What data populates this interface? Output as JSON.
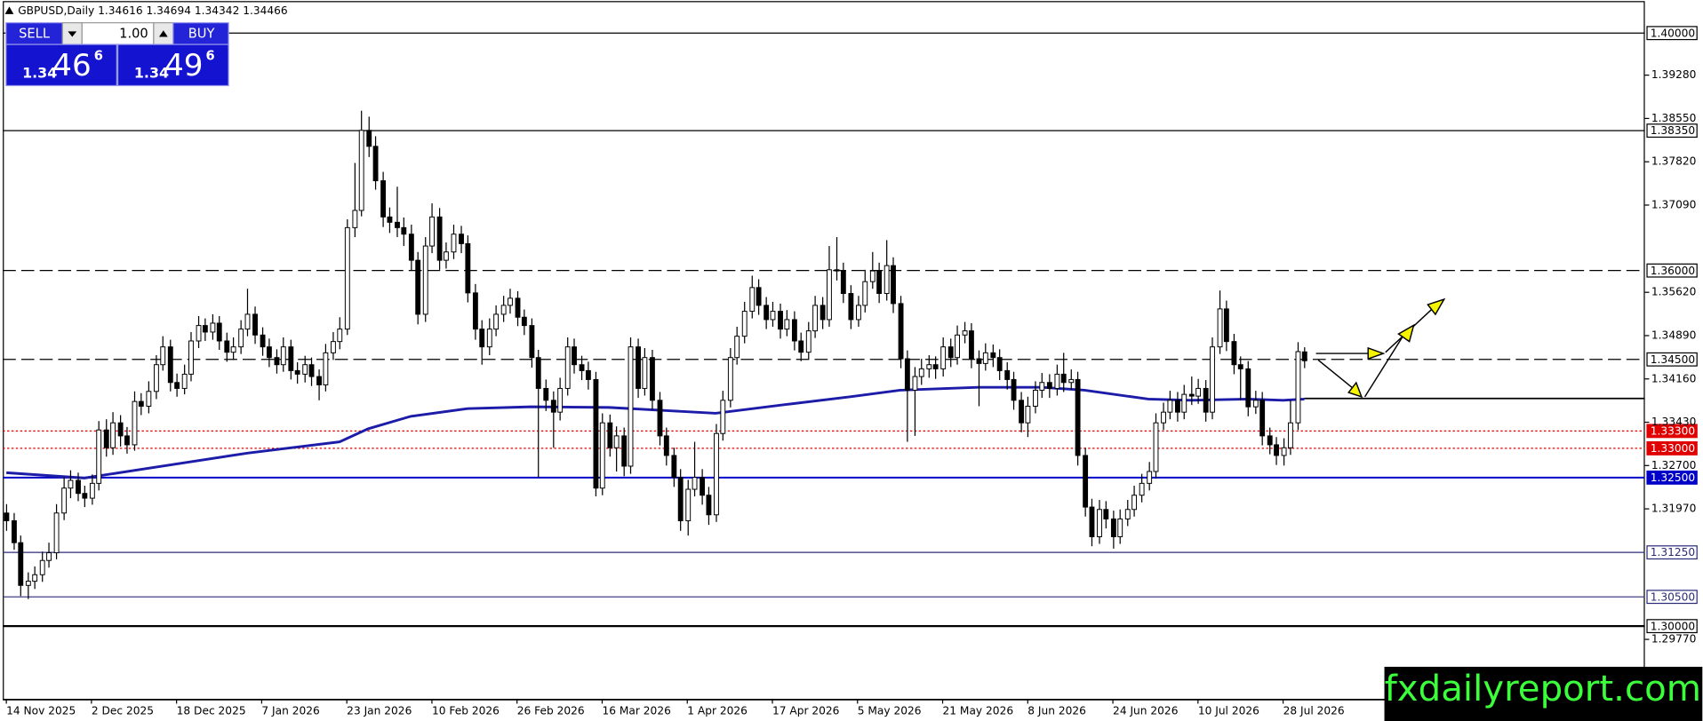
{
  "chart_data": {
    "type": "candlestick",
    "symbol": "GBPUSD,Daily",
    "watermark": "fxdailyreport.com",
    "trade_panel": {
      "sell": "SELL",
      "buy": "BUY",
      "lots": "1.00",
      "sell_big": "1.34",
      "sell_pips": "46",
      "sell_frac": "6",
      "buy_big": "1.34",
      "buy_pips": "49",
      "buy_frac": "6"
    },
    "ylim": [
      1.2876,
      1.4051
    ],
    "xlim": [
      -0.5,
      231
    ],
    "yticks": [
      {
        "value": 1.3928,
        "label": "1.39280"
      },
      {
        "value": 1.3855,
        "label": "1.38550"
      },
      {
        "value": 1.3782,
        "label": "1.37820"
      },
      {
        "value": 1.3709,
        "label": "1.37090"
      },
      {
        "value": 1.3562,
        "label": "1.35620"
      },
      {
        "value": 1.3489,
        "label": "1.34890"
      },
      {
        "value": 1.3416,
        "label": "1.34160"
      },
      {
        "value": 1.3343,
        "label": "1.33430"
      },
      {
        "value": 1.327,
        "label": "1.32700"
      },
      {
        "value": 1.3197,
        "label": "1.31970"
      },
      {
        "value": 1.2977,
        "label": "1.29770"
      }
    ],
    "xticks": [
      {
        "value": 0,
        "label": "14 Nov 2025"
      },
      {
        "value": 12,
        "label": "2 Dec 2025"
      },
      {
        "value": 24,
        "label": "18 Dec 2025"
      },
      {
        "value": 36,
        "label": "7 Jan 2026"
      },
      {
        "value": 48,
        "label": "23 Jan 2026"
      },
      {
        "value": 60,
        "label": "10 Feb 2026"
      },
      {
        "value": 72,
        "label": "26 Feb 2026"
      },
      {
        "value": 84,
        "label": "16 Mar 2026"
      },
      {
        "value": 96,
        "label": "1 Apr 2026"
      },
      {
        "value": 108,
        "label": "17 Apr 2026"
      },
      {
        "value": 120,
        "label": "5 May 2026"
      },
      {
        "value": 132,
        "label": "21 May 2026"
      },
      {
        "value": 144,
        "label": "8 Jun 2026"
      },
      {
        "value": 156,
        "label": "24 Jun 2026"
      },
      {
        "value": 168,
        "label": "10 Jul 2026"
      },
      {
        "value": 180,
        "label": "28 Jul 2026"
      }
    ],
    "levels": [
      {
        "value": 1.4,
        "label": "1.40000",
        "color": "#000000",
        "style": "solid"
      },
      {
        "value": 1.3835,
        "label": "1.38350",
        "color": "#000000",
        "style": "solid"
      },
      {
        "value": 1.36,
        "label": "1.36000",
        "color": "#000000",
        "style": "dashed"
      },
      {
        "value": 1.345,
        "label": "1.34500",
        "color": "#000000",
        "style": "dashed"
      },
      {
        "value": 1.333,
        "label": "1.33300",
        "color": "#e00000",
        "style": "dotted"
      },
      {
        "value": 1.33,
        "label": "1.33000",
        "color": "#e00000",
        "style": "dotted"
      },
      {
        "value": 1.325,
        "label": "1.32500",
        "color": "#0000c8",
        "style": "solid"
      },
      {
        "value": 1.3125,
        "label": "1.31250",
        "color": "#2b2b7a",
        "style": "solid"
      },
      {
        "value": 1.305,
        "label": "1.30500",
        "color": "#2b2b7a",
        "style": "solid"
      },
      {
        "value": 1.3,
        "label": "1.30000",
        "color": "#000000",
        "style": "solid"
      },
      {
        "value": 1.3384,
        "color": "#000000",
        "style": "solid",
        "from": 183
      }
    ],
    "ma": {
      "color": "#1c1ca8",
      "x": [
        0,
        11,
        22,
        34,
        47,
        51,
        57,
        65,
        74,
        85,
        94,
        100,
        110,
        119,
        126,
        137,
        146,
        152,
        161,
        167,
        175,
        180,
        183
      ],
      "values": [
        1.3258,
        1.3249,
        1.3269,
        1.3291,
        1.331,
        1.3332,
        1.3353,
        1.3366,
        1.3369,
        1.3368,
        1.3362,
        1.3358,
        1.3373,
        1.3386,
        1.3397,
        1.3402,
        1.3402,
        1.3397,
        1.3382,
        1.338,
        1.3382,
        1.338,
        1.3382
      ]
    },
    "candles": [
      [
        1.319,
        1.3205,
        1.316,
        1.3177
      ],
      [
        1.3177,
        1.319,
        1.3128,
        1.314
      ],
      [
        1.314,
        1.3152,
        1.305,
        1.3068
      ],
      [
        1.3068,
        1.309,
        1.3045,
        1.3075
      ],
      [
        1.3075,
        1.31,
        1.3062,
        1.3086
      ],
      [
        1.3086,
        1.3125,
        1.3074,
        1.311
      ],
      [
        1.311,
        1.314,
        1.3098,
        1.3123
      ],
      [
        1.3123,
        1.3205,
        1.3112,
        1.319
      ],
      [
        1.319,
        1.325,
        1.3178,
        1.3232
      ],
      [
        1.3232,
        1.3262,
        1.3215,
        1.3245
      ],
      [
        1.3245,
        1.3258,
        1.321,
        1.3223
      ],
      [
        1.3223,
        1.3236,
        1.32,
        1.3215
      ],
      [
        1.3215,
        1.3255,
        1.3204,
        1.324
      ],
      [
        1.324,
        1.3345,
        1.3228,
        1.333
      ],
      [
        1.333,
        1.3348,
        1.3285,
        1.33
      ],
      [
        1.33,
        1.336,
        1.3288,
        1.3342
      ],
      [
        1.3342,
        1.3355,
        1.3302,
        1.332
      ],
      [
        1.332,
        1.3335,
        1.329,
        1.3305
      ],
      [
        1.3305,
        1.3395,
        1.3295,
        1.3378
      ],
      [
        1.3378,
        1.3392,
        1.3355,
        1.337
      ],
      [
        1.337,
        1.3412,
        1.3358,
        1.3395
      ],
      [
        1.3395,
        1.3456,
        1.3382,
        1.344
      ],
      [
        1.344,
        1.3488,
        1.343,
        1.347
      ],
      [
        1.347,
        1.3482,
        1.3395,
        1.341
      ],
      [
        1.341,
        1.3425,
        1.3386,
        1.34
      ],
      [
        1.34,
        1.344,
        1.339,
        1.3424
      ],
      [
        1.3424,
        1.3495,
        1.3412,
        1.348
      ],
      [
        1.348,
        1.3522,
        1.3468,
        1.3506
      ],
      [
        1.3506,
        1.3518,
        1.348,
        1.3495
      ],
      [
        1.3495,
        1.3525,
        1.3482,
        1.351
      ],
      [
        1.351,
        1.3522,
        1.3465,
        1.348
      ],
      [
        1.348,
        1.3494,
        1.3445,
        1.3461
      ],
      [
        1.3461,
        1.3486,
        1.3448,
        1.347
      ],
      [
        1.347,
        1.3515,
        1.3458,
        1.35
      ],
      [
        1.35,
        1.3568,
        1.3488,
        1.3525
      ],
      [
        1.3525,
        1.3538,
        1.3475,
        1.349
      ],
      [
        1.349,
        1.3503,
        1.3455,
        1.347
      ],
      [
        1.347,
        1.3484,
        1.3436,
        1.3452
      ],
      [
        1.3452,
        1.3466,
        1.3425,
        1.344
      ],
      [
        1.344,
        1.3486,
        1.3428,
        1.347
      ],
      [
        1.347,
        1.3482,
        1.3415,
        1.343
      ],
      [
        1.343,
        1.3444,
        1.3408,
        1.3424
      ],
      [
        1.3424,
        1.3455,
        1.341,
        1.344
      ],
      [
        1.344,
        1.3452,
        1.3404,
        1.342
      ],
      [
        1.342,
        1.3432,
        1.338,
        1.3406
      ],
      [
        1.3406,
        1.3475,
        1.3395,
        1.346
      ],
      [
        1.346,
        1.3495,
        1.3448,
        1.3479
      ],
      [
        1.3479,
        1.352,
        1.3466,
        1.35
      ],
      [
        1.35,
        1.3685,
        1.349,
        1.3671
      ],
      [
        1.3671,
        1.378,
        1.3655,
        1.37
      ],
      [
        1.37,
        1.3868,
        1.369,
        1.3835
      ],
      [
        1.3835,
        1.3858,
        1.379,
        1.3808
      ],
      [
        1.3808,
        1.3825,
        1.3735,
        1.375
      ],
      [
        1.375,
        1.3765,
        1.3672,
        1.3689
      ],
      [
        1.3689,
        1.3705,
        1.3662,
        1.368
      ],
      [
        1.368,
        1.374,
        1.3655,
        1.3671
      ],
      [
        1.3671,
        1.3688,
        1.364,
        1.366
      ],
      [
        1.366,
        1.3676,
        1.3598,
        1.3616
      ],
      [
        1.3616,
        1.363,
        1.3508,
        1.3525
      ],
      [
        1.3525,
        1.3655,
        1.3512,
        1.364
      ],
      [
        1.364,
        1.3712,
        1.3628,
        1.3689
      ],
      [
        1.3689,
        1.3704,
        1.36,
        1.3616
      ],
      [
        1.3616,
        1.3646,
        1.3602,
        1.363
      ],
      [
        1.363,
        1.3676,
        1.3618,
        1.366
      ],
      [
        1.366,
        1.3674,
        1.3628,
        1.3644
      ],
      [
        1.3644,
        1.3658,
        1.3545,
        1.3561
      ],
      [
        1.3561,
        1.3576,
        1.3482,
        1.35
      ],
      [
        1.35,
        1.3515,
        1.344,
        1.347
      ],
      [
        1.347,
        1.3518,
        1.3456,
        1.35
      ],
      [
        1.35,
        1.354,
        1.3488,
        1.3525
      ],
      [
        1.3525,
        1.3556,
        1.3512,
        1.354
      ],
      [
        1.354,
        1.3568,
        1.3526,
        1.3552
      ],
      [
        1.3552,
        1.3564,
        1.3505,
        1.352
      ],
      [
        1.352,
        1.3533,
        1.349,
        1.3506
      ],
      [
        1.3506,
        1.3518,
        1.3435,
        1.3452
      ],
      [
        1.3452,
        1.3465,
        1.325,
        1.34
      ],
      [
        1.34,
        1.3415,
        1.3362,
        1.338
      ],
      [
        1.338,
        1.3395,
        1.33,
        1.336
      ],
      [
        1.336,
        1.3418,
        1.3346,
        1.34
      ],
      [
        1.34,
        1.3486,
        1.3388,
        1.347
      ],
      [
        1.347,
        1.3484,
        1.3425,
        1.344
      ],
      [
        1.344,
        1.3455,
        1.3414,
        1.343
      ],
      [
        1.343,
        1.3445,
        1.3398,
        1.3415
      ],
      [
        1.3415,
        1.3428,
        1.3218,
        1.3232
      ],
      [
        1.3232,
        1.3358,
        1.322,
        1.3342
      ],
      [
        1.3342,
        1.3356,
        1.3285,
        1.33
      ],
      [
        1.33,
        1.3336,
        1.326,
        1.332
      ],
      [
        1.332,
        1.3334,
        1.3252,
        1.3269
      ],
      [
        1.3269,
        1.3486,
        1.3256,
        1.347
      ],
      [
        1.347,
        1.3484,
        1.3384,
        1.34
      ],
      [
        1.34,
        1.3468,
        1.3388,
        1.3452
      ],
      [
        1.3452,
        1.3465,
        1.3364,
        1.338
      ],
      [
        1.338,
        1.3394,
        1.3304,
        1.332
      ],
      [
        1.332,
        1.3334,
        1.327,
        1.3287
      ],
      [
        1.3287,
        1.33,
        1.3234,
        1.325
      ],
      [
        1.325,
        1.3264,
        1.316,
        1.3177
      ],
      [
        1.3177,
        1.3246,
        1.3152,
        1.323
      ],
      [
        1.323,
        1.331,
        1.3218,
        1.325
      ],
      [
        1.325,
        1.3264,
        1.3204,
        1.322
      ],
      [
        1.322,
        1.3234,
        1.317,
        1.3187
      ],
      [
        1.3187,
        1.334,
        1.3175,
        1.3324
      ],
      [
        1.3324,
        1.3396,
        1.3312,
        1.338
      ],
      [
        1.338,
        1.3468,
        1.3368,
        1.3452
      ],
      [
        1.3452,
        1.3504,
        1.344,
        1.3488
      ],
      [
        1.3488,
        1.3546,
        1.3476,
        1.353
      ],
      [
        1.353,
        1.359,
        1.3518,
        1.357
      ],
      [
        1.357,
        1.3584,
        1.3524,
        1.354
      ],
      [
        1.354,
        1.3554,
        1.35,
        1.3516
      ],
      [
        1.3516,
        1.3546,
        1.3504,
        1.353
      ],
      [
        1.353,
        1.3543,
        1.3484,
        1.35
      ],
      [
        1.35,
        1.3532,
        1.3488,
        1.3516
      ],
      [
        1.3516,
        1.353,
        1.3464,
        1.348
      ],
      [
        1.348,
        1.3494,
        1.3446,
        1.3461
      ],
      [
        1.3461,
        1.3512,
        1.3449,
        1.3497
      ],
      [
        1.3497,
        1.3556,
        1.3485,
        1.354
      ],
      [
        1.354,
        1.3554,
        1.35,
        1.3516
      ],
      [
        1.3516,
        1.364,
        1.3504,
        1.36
      ],
      [
        1.36,
        1.3655,
        1.3582,
        1.3598
      ],
      [
        1.3598,
        1.3612,
        1.3544,
        1.356
      ],
      [
        1.356,
        1.3574,
        1.35,
        1.3516
      ],
      [
        1.3516,
        1.3556,
        1.3504,
        1.354
      ],
      [
        1.354,
        1.36,
        1.3528,
        1.358
      ],
      [
        1.358,
        1.363,
        1.3568,
        1.3598
      ],
      [
        1.3598,
        1.3612,
        1.3544,
        1.356
      ],
      [
        1.356,
        1.365,
        1.3548,
        1.3607
      ],
      [
        1.3607,
        1.3621,
        1.3527,
        1.3543
      ],
      [
        1.3543,
        1.3556,
        1.3434,
        1.345
      ],
      [
        1.345,
        1.3464,
        1.331,
        1.3397
      ],
      [
        1.3397,
        1.3436,
        1.332,
        1.342
      ],
      [
        1.342,
        1.345,
        1.3406,
        1.3433
      ],
      [
        1.3433,
        1.3456,
        1.3418,
        1.344
      ],
      [
        1.344,
        1.3454,
        1.3416,
        1.3433
      ],
      [
        1.3433,
        1.3486,
        1.342,
        1.347
      ],
      [
        1.347,
        1.3484,
        1.3436,
        1.3452
      ],
      [
        1.3452,
        1.3506,
        1.344,
        1.349
      ],
      [
        1.349,
        1.3512,
        1.3476,
        1.3497
      ],
      [
        1.3497,
        1.351,
        1.3434,
        1.345
      ],
      [
        1.345,
        1.3464,
        1.337,
        1.3442
      ],
      [
        1.3442,
        1.3476,
        1.343,
        1.346
      ],
      [
        1.346,
        1.3474,
        1.3436,
        1.3452
      ],
      [
        1.3452,
        1.3466,
        1.3414,
        1.343
      ],
      [
        1.343,
        1.3444,
        1.3398,
        1.3415
      ],
      [
        1.3415,
        1.3428,
        1.3364,
        1.338
      ],
      [
        1.338,
        1.3394,
        1.3326,
        1.3342
      ],
      [
        1.3342,
        1.3386,
        1.3318,
        1.337
      ],
      [
        1.337,
        1.3412,
        1.3358,
        1.3397
      ],
      [
        1.3397,
        1.3426,
        1.3384,
        1.341
      ],
      [
        1.341,
        1.3424,
        1.3384,
        1.34
      ],
      [
        1.34,
        1.344,
        1.3388,
        1.3424
      ],
      [
        1.3424,
        1.346,
        1.3394,
        1.341
      ],
      [
        1.341,
        1.3432,
        1.3398,
        1.3415
      ],
      [
        1.3415,
        1.3428,
        1.327,
        1.3287
      ],
      [
        1.3287,
        1.33,
        1.3184,
        1.32
      ],
      [
        1.32,
        1.3214,
        1.3134,
        1.315
      ],
      [
        1.315,
        1.3212,
        1.3138,
        1.3196
      ],
      [
        1.3196,
        1.321,
        1.3164,
        1.318
      ],
      [
        1.318,
        1.3194,
        1.313,
        1.315
      ],
      [
        1.315,
        1.3196,
        1.3138,
        1.318
      ],
      [
        1.318,
        1.3212,
        1.3168,
        1.3196
      ],
      [
        1.3196,
        1.3236,
        1.3184,
        1.322
      ],
      [
        1.322,
        1.3256,
        1.3208,
        1.324
      ],
      [
        1.324,
        1.3276,
        1.3228,
        1.326
      ],
      [
        1.326,
        1.3358,
        1.3248,
        1.3342
      ],
      [
        1.3342,
        1.3376,
        1.333,
        1.336
      ],
      [
        1.336,
        1.3396,
        1.3348,
        1.338
      ],
      [
        1.338,
        1.3394,
        1.3344,
        1.336
      ],
      [
        1.336,
        1.3406,
        1.3348,
        1.339
      ],
      [
        1.339,
        1.342,
        1.3372,
        1.3387
      ],
      [
        1.3387,
        1.3416,
        1.3374,
        1.34
      ],
      [
        1.34,
        1.3414,
        1.3344,
        1.336
      ],
      [
        1.336,
        1.3486,
        1.3348,
        1.347
      ],
      [
        1.347,
        1.3565,
        1.3458,
        1.3534
      ],
      [
        1.3534,
        1.3548,
        1.3463,
        1.3479
      ],
      [
        1.3479,
        1.3492,
        1.3424,
        1.344
      ],
      [
        1.344,
        1.3454,
        1.338,
        1.3433
      ],
      [
        1.3433,
        1.3446,
        1.3353,
        1.3369
      ],
      [
        1.3369,
        1.3396,
        1.3357,
        1.338
      ],
      [
        1.338,
        1.3394,
        1.3304,
        1.332
      ],
      [
        1.332,
        1.3334,
        1.3289,
        1.3305
      ],
      [
        1.3305,
        1.3318,
        1.3271,
        1.3287
      ],
      [
        1.3287,
        1.3316,
        1.327,
        1.33
      ],
      [
        1.33,
        1.338,
        1.3288,
        1.3342
      ],
      [
        1.3342,
        1.3478,
        1.333,
        1.3462
      ],
      [
        1.34616,
        1.34694,
        1.34342,
        1.34466
      ]
    ]
  }
}
